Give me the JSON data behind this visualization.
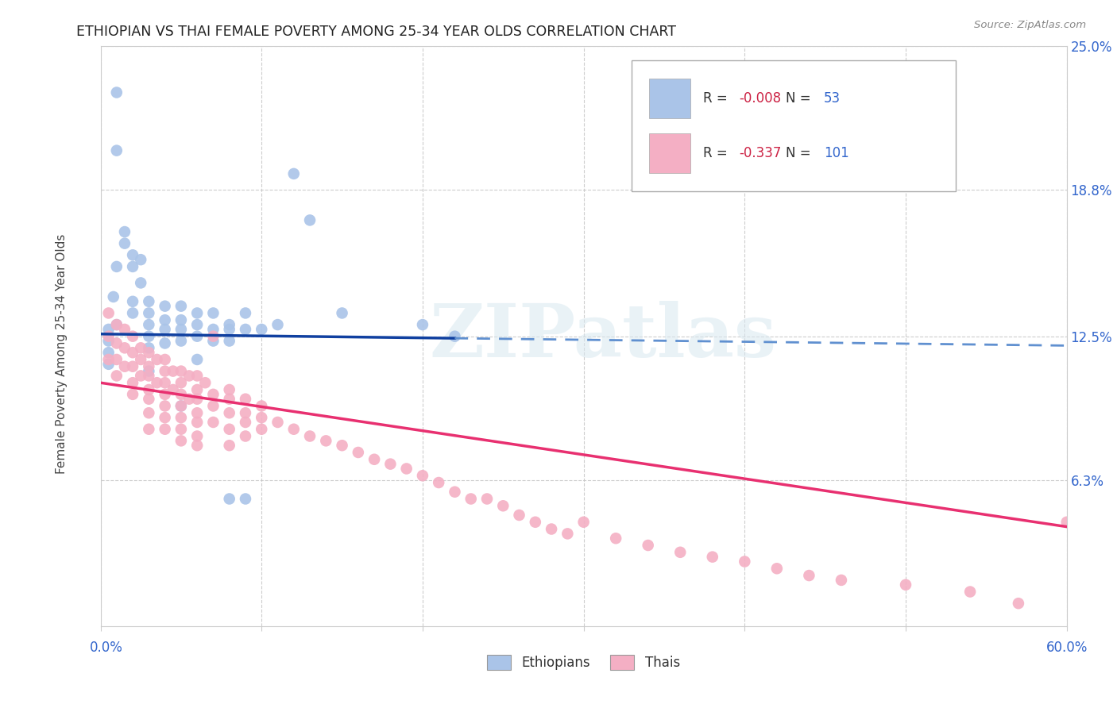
{
  "title": "ETHIOPIAN VS THAI FEMALE POVERTY AMONG 25-34 YEAR OLDS CORRELATION CHART",
  "source": "Source: ZipAtlas.com",
  "ylabel": "Female Poverty Among 25-34 Year Olds",
  "xmin": 0.0,
  "xmax": 60.0,
  "ymin": 0.0,
  "ymax": 25.0,
  "yticks": [
    6.3,
    12.5,
    18.8,
    25.0
  ],
  "ytick_labels": [
    "6.3%",
    "12.5%",
    "18.8%",
    "25.0%"
  ],
  "background_color": "#ffffff",
  "grid_color": "#c8c8c8",
  "ethiopian_color": "#aac4e8",
  "thai_color": "#f4afc4",
  "trendline_eth_solid_color": "#1040a0",
  "trendline_eth_dashed_color": "#6090d0",
  "trendline_thai_color": "#e83070",
  "legend_ethiopian_label": "Ethiopians",
  "legend_thai_label": "Thais",
  "r_ethiopian": -0.008,
  "n_ethiopian": 53,
  "r_thai": -0.337,
  "n_thai": 101,
  "watermark": "ZIPatlas",
  "eth_trendline_x0": 0,
  "eth_trendline_x1": 60,
  "eth_trendline_y0": 12.6,
  "eth_trendline_y1": 12.1,
  "eth_solid_x_end": 22,
  "thai_trendline_x0": 0,
  "thai_trendline_x1": 60,
  "thai_trendline_y0": 10.5,
  "thai_trendline_y1": 4.3,
  "eth_x": [
    0.5,
    0.5,
    0.5,
    0.5,
    0.8,
    1,
    1,
    1,
    1,
    1.5,
    1.5,
    2,
    2,
    2,
    2,
    2.5,
    2.5,
    3,
    3,
    3,
    3,
    3,
    3,
    4,
    4,
    4,
    4,
    5,
    5,
    5,
    5,
    5,
    6,
    6,
    6,
    6,
    7,
    7,
    7,
    8,
    8,
    8,
    8,
    9,
    9,
    9,
    10,
    11,
    12,
    13,
    15,
    20,
    22
  ],
  "eth_y": [
    12.8,
    12.3,
    11.8,
    11.3,
    14.2,
    23.0,
    20.5,
    15.5,
    13.0,
    17.0,
    16.5,
    16.0,
    15.5,
    14.0,
    13.5,
    15.8,
    14.8,
    14.0,
    13.5,
    13.0,
    12.5,
    12.0,
    11.0,
    13.8,
    13.2,
    12.8,
    12.2,
    13.8,
    13.2,
    12.8,
    12.3,
    9.5,
    13.5,
    13.0,
    12.5,
    11.5,
    13.5,
    12.8,
    12.3,
    13.0,
    12.8,
    12.3,
    5.5,
    13.5,
    12.8,
    5.5,
    12.8,
    13.0,
    19.5,
    17.5,
    13.5,
    13.0,
    12.5
  ],
  "thai_x": [
    0.5,
    0.5,
    0.5,
    1,
    1,
    1,
    1,
    1.5,
    1.5,
    1.5,
    2,
    2,
    2,
    2,
    2,
    2.5,
    2.5,
    2.5,
    3,
    3,
    3,
    3,
    3,
    3,
    3,
    3.5,
    3.5,
    4,
    4,
    4,
    4,
    4,
    4,
    4,
    4.5,
    4.5,
    5,
    5,
    5,
    5,
    5,
    5,
    5,
    5.5,
    5.5,
    6,
    6,
    6,
    6,
    6,
    6,
    6,
    6.5,
    7,
    7,
    7,
    7,
    8,
    8,
    8,
    8,
    8,
    9,
    9,
    9,
    9,
    10,
    10,
    10,
    11,
    12,
    13,
    14,
    15,
    16,
    17,
    18,
    19,
    20,
    21,
    22,
    23,
    24,
    25,
    26,
    27,
    28,
    29,
    30,
    32,
    34,
    36,
    38,
    40,
    42,
    44,
    46,
    50,
    54,
    57,
    60
  ],
  "thai_y": [
    13.5,
    12.5,
    11.5,
    13.0,
    12.2,
    11.5,
    10.8,
    12.8,
    12.0,
    11.2,
    12.5,
    11.8,
    11.2,
    10.5,
    10.0,
    12.0,
    11.5,
    10.8,
    11.8,
    11.2,
    10.8,
    10.2,
    9.8,
    9.2,
    8.5,
    11.5,
    10.5,
    11.5,
    11.0,
    10.5,
    10.0,
    9.5,
    9.0,
    8.5,
    11.0,
    10.2,
    11.0,
    10.5,
    10.0,
    9.5,
    9.0,
    8.5,
    8.0,
    10.8,
    9.8,
    10.8,
    10.2,
    9.8,
    9.2,
    8.8,
    8.2,
    7.8,
    10.5,
    10.0,
    9.5,
    8.8,
    12.5,
    10.2,
    9.8,
    9.2,
    8.5,
    7.8,
    9.8,
    9.2,
    8.8,
    8.2,
    9.5,
    9.0,
    8.5,
    8.8,
    8.5,
    8.2,
    8.0,
    7.8,
    7.5,
    7.2,
    7.0,
    6.8,
    6.5,
    6.2,
    5.8,
    5.5,
    5.5,
    5.2,
    4.8,
    4.5,
    4.2,
    4.0,
    4.5,
    3.8,
    3.5,
    3.2,
    3.0,
    2.8,
    2.5,
    2.2,
    2.0,
    1.8,
    1.5,
    1.0,
    4.5
  ]
}
